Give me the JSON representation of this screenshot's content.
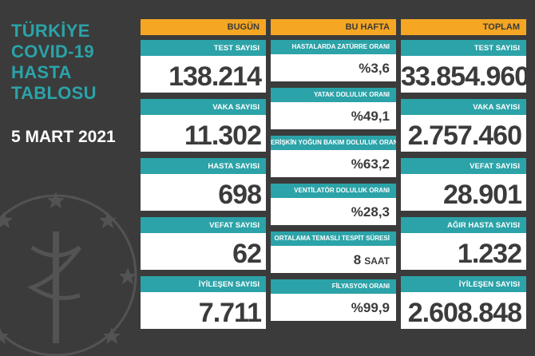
{
  "title": {
    "line1": "TÜRKİYE",
    "line2": "COVID-19",
    "line3": "HASTA",
    "line4": "TABLOSU"
  },
  "date": "5 MART 2021",
  "columns": {
    "today": {
      "header": "BUGÜN",
      "items": [
        {
          "label": "TEST SAYISI",
          "value": "138.214"
        },
        {
          "label": "VAKA SAYISI",
          "value": "11.302"
        },
        {
          "label": "HASTA SAYISI",
          "value": "698"
        },
        {
          "label": "VEFAT SAYISI",
          "value": "62"
        },
        {
          "label": "İYİLEŞEN SAYISI",
          "value": "7.711"
        }
      ]
    },
    "week": {
      "header": "BU HAFTA",
      "items": [
        {
          "label": "HASTALARDA ZATÜRRE ORANI",
          "value": "%3,6"
        },
        {
          "label": "YATAK DOLULUK ORANI",
          "value": "%49,1"
        },
        {
          "label": "ERİŞKİN YOĞUN BAKIM DOLULUK ORANI",
          "value": "%63,2"
        },
        {
          "label": "VENTİLATÖR DOLULUK ORANI",
          "value": "%28,3"
        },
        {
          "label": "ORTALAMA TEMASLI TESPİT SÜRESİ",
          "value": "8",
          "unit": "SAAT"
        },
        {
          "label": "FİLYASYON ORANI",
          "value": "%99,9"
        }
      ]
    },
    "total": {
      "header": "TOPLAM",
      "items": [
        {
          "label": "TEST SAYISI",
          "value": "33.854.960"
        },
        {
          "label": "VAKA SAYISI",
          "value": "2.757.460"
        },
        {
          "label": "VEFAT SAYISI",
          "value": "28.901"
        },
        {
          "label": "AĞIR HASTA SAYISI",
          "value": "1.232"
        },
        {
          "label": "İYİLEŞEN SAYISI",
          "value": "2.608.848"
        }
      ]
    }
  },
  "colors": {
    "accent": "#2ba3a8",
    "header": "#f5a623",
    "background": "#3b3b3b"
  }
}
